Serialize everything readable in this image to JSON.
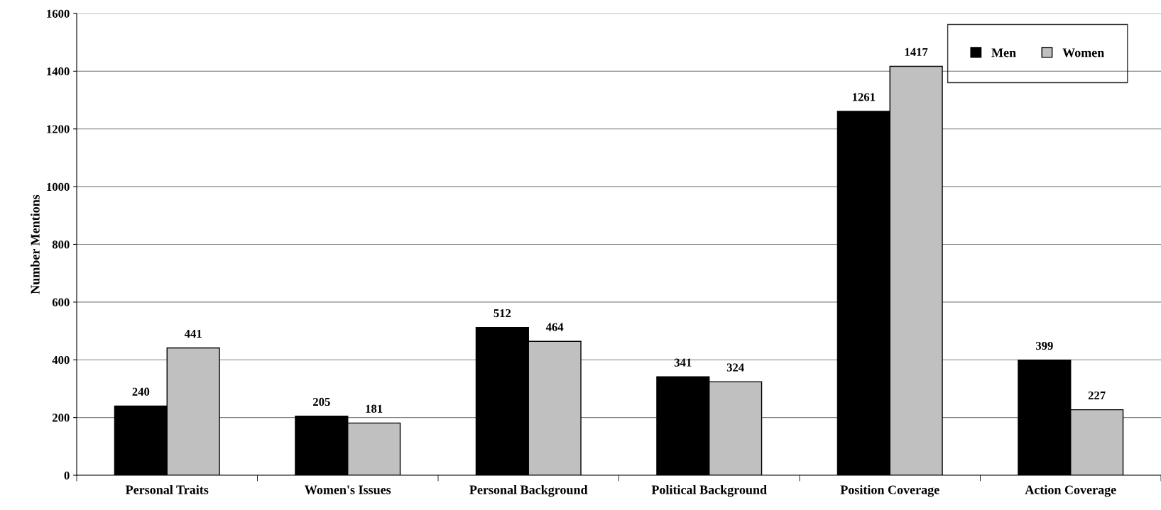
{
  "chart_data": {
    "type": "bar",
    "ylabel": "Number Mentions",
    "categories": [
      "Personal Traits",
      "Women's Issues",
      "Personal Background",
      "Political Background",
      "Position Coverage",
      "Action Coverage"
    ],
    "series": [
      {
        "name": "Men",
        "color": "#000000",
        "values": [
          240,
          205,
          512,
          341,
          1261,
          399
        ]
      },
      {
        "name": "Women",
        "color": "#c0c0c0",
        "values": [
          441,
          181,
          464,
          324,
          1417,
          227
        ]
      }
    ],
    "ylim": [
      0,
      1600
    ],
    "yticks": [
      0,
      200,
      400,
      600,
      800,
      1000,
      1200,
      1400,
      1600
    ],
    "grid": "y",
    "legend": "top right",
    "data_labels": true
  }
}
